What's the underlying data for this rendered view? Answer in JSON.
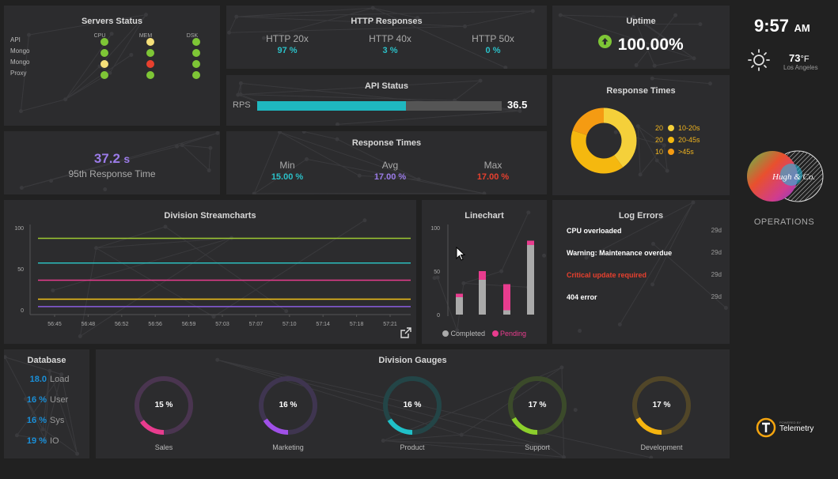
{
  "servers": {
    "title": "Servers Status",
    "columns": [
      "CPU",
      "MEM",
      "DSK"
    ],
    "rows": [
      {
        "name": "API",
        "status": [
          "#7ec636",
          "#f5e07a",
          "#7ec636"
        ]
      },
      {
        "name": "Mongo",
        "status": [
          "#7ec636",
          "#7ec636",
          "#7ec636"
        ]
      },
      {
        "name": "Mongo",
        "status": [
          "#f5e07a",
          "#e8402e",
          "#7ec636"
        ]
      },
      {
        "name": "Proxy",
        "status": [
          "#7ec636",
          "#7ec636",
          "#7ec636"
        ]
      }
    ]
  },
  "http": {
    "title": "HTTP Responses",
    "items": [
      {
        "label": "HTTP 20x",
        "value": "97 %"
      },
      {
        "label": "HTTP 40x",
        "value": "3 %"
      },
      {
        "label": "HTTP 50x",
        "value": "0 %"
      }
    ]
  },
  "uptime": {
    "title": "Uptime",
    "value": "100.00%"
  },
  "clock": {
    "time": "9:57",
    "ampm": "AM",
    "temp": "73",
    "unit": "°F",
    "city": "Los Angeles"
  },
  "api_status": {
    "title": "API Status",
    "label": "RPS",
    "value": "36.5",
    "fill": 0.61
  },
  "resp95": {
    "value": "37.2",
    "unit": "s",
    "label": "95th Response Time"
  },
  "response_times": {
    "title": "Response Times",
    "items": [
      {
        "label": "Min",
        "value": "15.00 %",
        "color": "#2bc0c8"
      },
      {
        "label": "Avg",
        "value": "17.00 %",
        "color": "#9b7be8"
      },
      {
        "label": "Max",
        "value": "17.00 %",
        "color": "#e8402e"
      }
    ]
  },
  "response_donut": {
    "title": "Response Times",
    "legend": [
      {
        "count": "20",
        "label": "10-20s",
        "color": "#f5d03a"
      },
      {
        "count": "20",
        "label": "20-45s",
        "color": "#f5b80f"
      },
      {
        "count": "10",
        "label": ">45s",
        "color": "#f59b12"
      }
    ]
  },
  "brand": {
    "logo_text": "Hugh & Co.",
    "label": "OPERATIONS"
  },
  "stream": {
    "title": "Division Streamcharts",
    "chart_data": {
      "type": "line",
      "x": [
        "56:45",
        "56:48",
        "56:52",
        "56:56",
        "56:59",
        "57:03",
        "57:07",
        "57:10",
        "57:14",
        "57:18",
        "57:21"
      ],
      "y_ticks": [
        "100",
        "50",
        "0"
      ],
      "ylim": [
        0,
        100
      ],
      "series": [
        {
          "color": "#9cc832",
          "value": 87
        },
        {
          "color": "#2bbdbd",
          "value": 57
        },
        {
          "color": "#e83c8e",
          "value": 36
        },
        {
          "color": "#f5c218",
          "value": 13
        },
        {
          "color": "#8a5de0",
          "value": 4
        }
      ]
    }
  },
  "linechart": {
    "title": "Linechart",
    "chart_data": {
      "type": "bar",
      "y_ticks": [
        "100",
        "50",
        "0"
      ],
      "ylim": [
        0,
        100
      ],
      "series": [
        {
          "name": "Completed",
          "color": "#aaaaaa",
          "values": [
            20,
            40,
            5,
            80
          ]
        },
        {
          "name": "Pending",
          "color": "#e83c8e",
          "values": [
            4,
            10,
            30,
            5
          ]
        }
      ]
    }
  },
  "log_errors": {
    "title": "Log Errors",
    "items": [
      {
        "text": "CPU overloaded",
        "age": "29d",
        "color": "#ffffff"
      },
      {
        "text": "Warning: Maintenance overdue",
        "age": "29d",
        "color": "#ffffff"
      },
      {
        "text": "Critical update required",
        "age": "29d",
        "color": "#e8402e"
      },
      {
        "text": "404 error",
        "age": "29d",
        "color": "#ffffff"
      }
    ]
  },
  "database": {
    "title": "Database",
    "items": [
      {
        "value": "18.0",
        "label": "Load"
      },
      {
        "value": "16 %",
        "label": "User"
      },
      {
        "value": "16 %",
        "label": "Sys"
      },
      {
        "value": "19 %",
        "label": "IO"
      }
    ]
  },
  "gauges": {
    "title": "Division Gauges",
    "items": [
      {
        "label": "Sales",
        "value": "15 %",
        "fraction": 0.15,
        "color": "#e83c8e",
        "track": "#4a3550"
      },
      {
        "label": "Marketing",
        "value": "16 %",
        "fraction": 0.16,
        "color": "#a050e8",
        "track": "#3f3550"
      },
      {
        "label": "Product",
        "value": "16 %",
        "fraction": 0.16,
        "color": "#20c0c8",
        "track": "#234547"
      },
      {
        "label": "Support",
        "value": "17 %",
        "fraction": 0.17,
        "color": "#8ccf2c",
        "track": "#3b4a2a"
      },
      {
        "label": "Development",
        "value": "17 %",
        "fraction": 0.17,
        "color": "#f5b40f",
        "track": "#514628"
      }
    ]
  },
  "telemetry": {
    "small": "POWERED BY",
    "name": "Telemetry"
  }
}
